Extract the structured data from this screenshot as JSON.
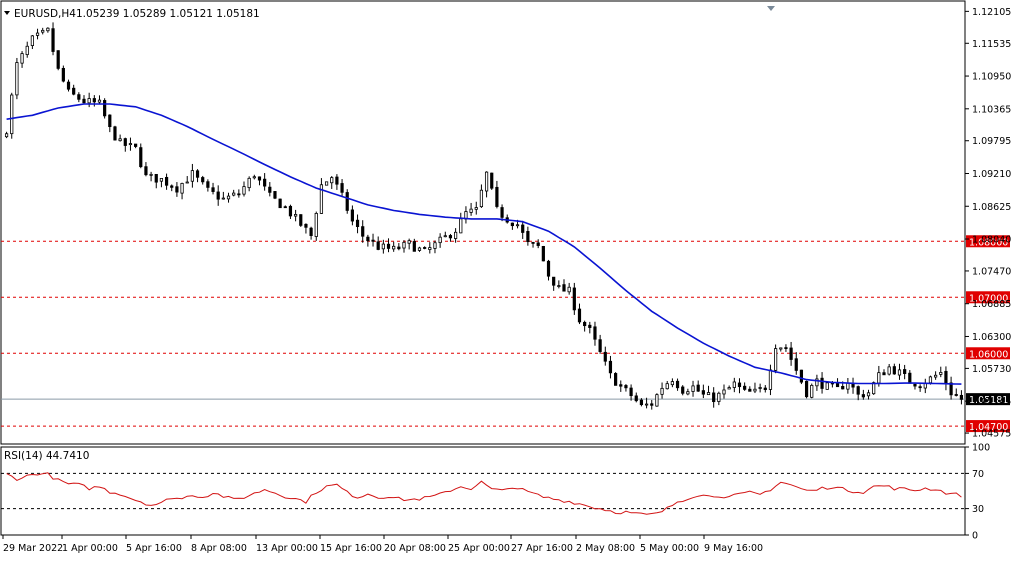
{
  "header": {
    "symbol_label": "EURUSD,H4",
    "ohlc_label": "1.05239 1.05289 1.05121 1.05181"
  },
  "rsi_panel": {
    "label": "RSI(14) 44.7410"
  },
  "colors": {
    "ma_line": "#0a14d2",
    "rsi_line": "#d21414",
    "level_line": "#e00000",
    "price_tag_current": "#000000",
    "price_tag_level": "#e00000"
  },
  "chart_data": [
    {
      "type": "candlestick",
      "symbol": "EURUSD",
      "timeframe": "H4",
      "ylim": [
        1.0438,
        1.1229
      ],
      "y_ticks": [
        "1.12105",
        "1.11535",
        "1.10950",
        "1.10365",
        "1.09795",
        "1.09210",
        "1.08625",
        "1.08040",
        "1.07470",
        "1.06885",
        "1.06300",
        "1.05730",
        "1.05145",
        "1.04575"
      ],
      "x_ticks": [
        "29 Mar 2022",
        "1 Apr 00:00",
        "5 Apr 16:00",
        "8 Apr 08:00",
        "13 Apr 00:00",
        "15 Apr 16:00",
        "20 Apr 08:00",
        "25 Apr 00:00",
        "27 Apr 16:00",
        "2 May 08:00",
        "5 May 00:00",
        "9 May 16:00"
      ],
      "horizontal_levels": [
        {
          "value": 1.08,
          "label": "1.08000"
        },
        {
          "value": 1.07,
          "label": "1.07000"
        },
        {
          "value": 1.06,
          "label": "1.06000"
        },
        {
          "value": 1.047,
          "label": "1.04700"
        }
      ],
      "current_price": {
        "value": 1.05181,
        "label": "1.05181"
      },
      "close_path": [
        [
          0,
          1.1
        ],
        [
          2,
          1.1115
        ],
        [
          5,
          1.116
        ],
        [
          8,
          1.1175
        ],
        [
          10,
          1.1105
        ],
        [
          12,
          1.1065
        ],
        [
          15,
          1.105
        ],
        [
          18,
          1.1045
        ],
        [
          20,
          1.1
        ],
        [
          22,
          1.0975
        ],
        [
          25,
          1.0965
        ],
        [
          27,
          1.0915
        ],
        [
          30,
          1.091
        ],
        [
          33,
          1.0895
        ],
        [
          36,
          1.092
        ],
        [
          39,
          1.089
        ],
        [
          42,
          1.0875
        ],
        [
          45,
          1.0885
        ],
        [
          48,
          1.092
        ],
        [
          51,
          1.088
        ],
        [
          54,
          1.086
        ],
        [
          57,
          1.083
        ],
        [
          59,
          1.081
        ],
        [
          61,
          1.09
        ],
        [
          63,
          1.0915
        ],
        [
          65,
          1.088
        ],
        [
          67,
          1.0835
        ],
        [
          69,
          1.081
        ],
        [
          72,
          1.079
        ],
        [
          75,
          1.0785
        ],
        [
          78,
          1.0795
        ],
        [
          81,
          1.078
        ],
        [
          84,
          1.08
        ],
        [
          87,
          1.082
        ],
        [
          89,
          1.085
        ],
        [
          91,
          1.0855
        ],
        [
          93,
          1.092
        ],
        [
          95,
          1.0855
        ],
        [
          97,
          1.084
        ],
        [
          99,
          1.083
        ],
        [
          101,
          1.0795
        ],
        [
          103,
          1.079
        ],
        [
          105,
          1.074
        ],
        [
          107,
          1.0715
        ],
        [
          109,
          1.071
        ],
        [
          111,
          1.066
        ],
        [
          113,
          1.064
        ],
        [
          115,
          1.06
        ],
        [
          117,
          1.056
        ],
        [
          119,
          1.054
        ],
        [
          121,
          1.0525
        ],
        [
          123,
          1.0505
        ],
        [
          125,
          1.051
        ],
        [
          127,
          1.054
        ],
        [
          129,
          1.0555
        ],
        [
          131,
          1.0535
        ],
        [
          133,
          1.054
        ],
        [
          135,
          1.0525
        ],
        [
          137,
          1.052
        ],
        [
          139,
          1.053
        ],
        [
          141,
          1.0545
        ],
        [
          143,
          1.053
        ],
        [
          145,
          1.053
        ],
        [
          147,
          1.054
        ],
        [
          149,
          1.0615
        ],
        [
          151,
          1.061
        ],
        [
          153,
          1.057
        ],
        [
          155,
          1.053
        ],
        [
          157,
          1.055
        ],
        [
          159,
          1.054
        ],
        [
          161,
          1.0535
        ],
        [
          163,
          1.055
        ],
        [
          165,
          1.0525
        ],
        [
          167,
          1.053
        ],
        [
          169,
          1.056
        ],
        [
          171,
          1.0575
        ],
        [
          173,
          1.0565
        ],
        [
          175,
          1.055
        ],
        [
          177,
          1.0545
        ],
        [
          179,
          1.0555
        ],
        [
          181,
          1.0565
        ],
        [
          183,
          1.053
        ],
        [
          185,
          1.0518
        ]
      ],
      "moving_average": [
        [
          0,
          1.1018
        ],
        [
          5,
          1.1025
        ],
        [
          10,
          1.1038
        ],
        [
          15,
          1.1045
        ],
        [
          20,
          1.1045
        ],
        [
          25,
          1.104
        ],
        [
          30,
          1.1025
        ],
        [
          35,
          1.1005
        ],
        [
          40,
          1.0982
        ],
        [
          45,
          1.096
        ],
        [
          50,
          1.0937
        ],
        [
          55,
          1.0915
        ],
        [
          60,
          1.0895
        ],
        [
          65,
          1.088
        ],
        [
          70,
          1.0865
        ],
        [
          75,
          1.0855
        ],
        [
          80,
          1.0848
        ],
        [
          85,
          1.0843
        ],
        [
          90,
          1.084
        ],
        [
          95,
          1.084
        ],
        [
          100,
          1.0835
        ],
        [
          105,
          1.0818
        ],
        [
          110,
          1.079
        ],
        [
          115,
          1.0752
        ],
        [
          120,
          1.0712
        ],
        [
          125,
          1.0675
        ],
        [
          130,
          1.0645
        ],
        [
          135,
          1.0618
        ],
        [
          140,
          1.0595
        ],
        [
          145,
          1.0575
        ],
        [
          150,
          1.0565
        ],
        [
          155,
          1.0553
        ],
        [
          160,
          1.0548
        ],
        [
          165,
          1.0546
        ],
        [
          170,
          1.0546
        ],
        [
          175,
          1.0547
        ],
        [
          180,
          1.0546
        ],
        [
          185,
          1.0545
        ]
      ]
    },
    {
      "type": "line",
      "name": "RSI(14)",
      "ylim": [
        0,
        100
      ],
      "y_ticks": [
        "100",
        "70",
        "30",
        "0"
      ],
      "levels": [
        70,
        30
      ],
      "values": [
        [
          0,
          69
        ],
        [
          2,
          64
        ],
        [
          4,
          67
        ],
        [
          6,
          70
        ],
        [
          8,
          69
        ],
        [
          10,
          62
        ],
        [
          12,
          58
        ],
        [
          14,
          57
        ],
        [
          16,
          53
        ],
        [
          18,
          55
        ],
        [
          20,
          49
        ],
        [
          22,
          47
        ],
        [
          24,
          42
        ],
        [
          26,
          38
        ],
        [
          28,
          34
        ],
        [
          30,
          36
        ],
        [
          32,
          43
        ],
        [
          34,
          41
        ],
        [
          36,
          46
        ],
        [
          38,
          43
        ],
        [
          40,
          48
        ],
        [
          42,
          44
        ],
        [
          44,
          40
        ],
        [
          46,
          43
        ],
        [
          48,
          47
        ],
        [
          50,
          52
        ],
        [
          52,
          48
        ],
        [
          54,
          44
        ],
        [
          56,
          41
        ],
        [
          58,
          38
        ],
        [
          60,
          49
        ],
        [
          62,
          55
        ],
        [
          64,
          57
        ],
        [
          66,
          48
        ],
        [
          68,
          43
        ],
        [
          70,
          47
        ],
        [
          72,
          43
        ],
        [
          74,
          44
        ],
        [
          76,
          41
        ],
        [
          78,
          40
        ],
        [
          80,
          41
        ],
        [
          82,
          43
        ],
        [
          84,
          46
        ],
        [
          86,
          51
        ],
        [
          88,
          55
        ],
        [
          90,
          53
        ],
        [
          92,
          60
        ],
        [
          94,
          52
        ],
        [
          96,
          50
        ],
        [
          98,
          55
        ],
        [
          100,
          51
        ],
        [
          102,
          47
        ],
        [
          104,
          43
        ],
        [
          106,
          41
        ],
        [
          108,
          39
        ],
        [
          110,
          37
        ],
        [
          112,
          34
        ],
        [
          114,
          31
        ],
        [
          116,
          29
        ],
        [
          118,
          26
        ],
        [
          120,
          26
        ],
        [
          122,
          24
        ],
        [
          124,
          23
        ],
        [
          126,
          24
        ],
        [
          128,
          30
        ],
        [
          130,
          38
        ],
        [
          132,
          42
        ],
        [
          134,
          46
        ],
        [
          136,
          44
        ],
        [
          138,
          45
        ],
        [
          140,
          43
        ],
        [
          142,
          46
        ],
        [
          144,
          48
        ],
        [
          146,
          46
        ],
        [
          148,
          52
        ],
        [
          150,
          60
        ],
        [
          152,
          57
        ],
        [
          154,
          52
        ],
        [
          156,
          50
        ],
        [
          158,
          53
        ],
        [
          160,
          55
        ],
        [
          162,
          52
        ],
        [
          164,
          50
        ],
        [
          166,
          49
        ],
        [
          168,
          55
        ],
        [
          170,
          56
        ],
        [
          172,
          53
        ],
        [
          174,
          52
        ],
        [
          176,
          51
        ],
        [
          178,
          53
        ],
        [
          180,
          52
        ],
        [
          182,
          48
        ],
        [
          185,
          45
        ]
      ]
    }
  ]
}
